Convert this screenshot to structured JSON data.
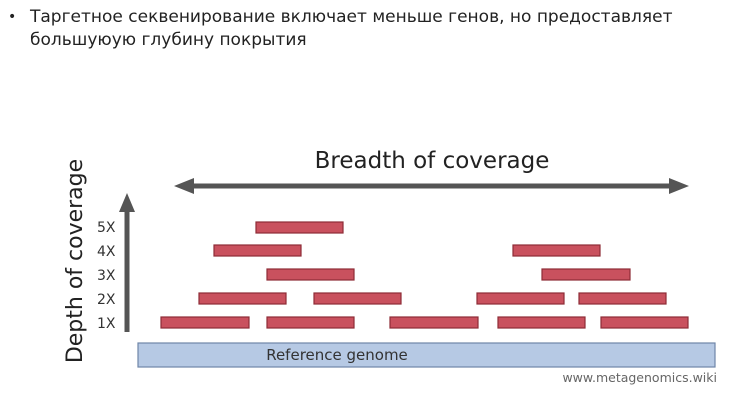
{
  "bullet": {
    "text": "Таргетное секвенирование включает меньше генов, но предоставляет большуюую глубину покрытия"
  },
  "figure": {
    "breadth_label": "Breadth of coverage",
    "depth_label": "Depth of coverage",
    "reference_label": "Reference genome",
    "attribution": "www.metagenomics.wiki",
    "colors": {
      "read_fill": "#c9515e",
      "read_stroke": "#8e2c36",
      "arrow": "#555555",
      "reference_fill": "#b6c9e4",
      "reference_stroke": "#6f86a8"
    },
    "depth_levels": [
      "1X",
      "2X",
      "3X",
      "4X",
      "5X"
    ]
  },
  "icons": {
    "breadth": "double-headed-arrow-icon",
    "depth": "up-arrow-icon"
  }
}
